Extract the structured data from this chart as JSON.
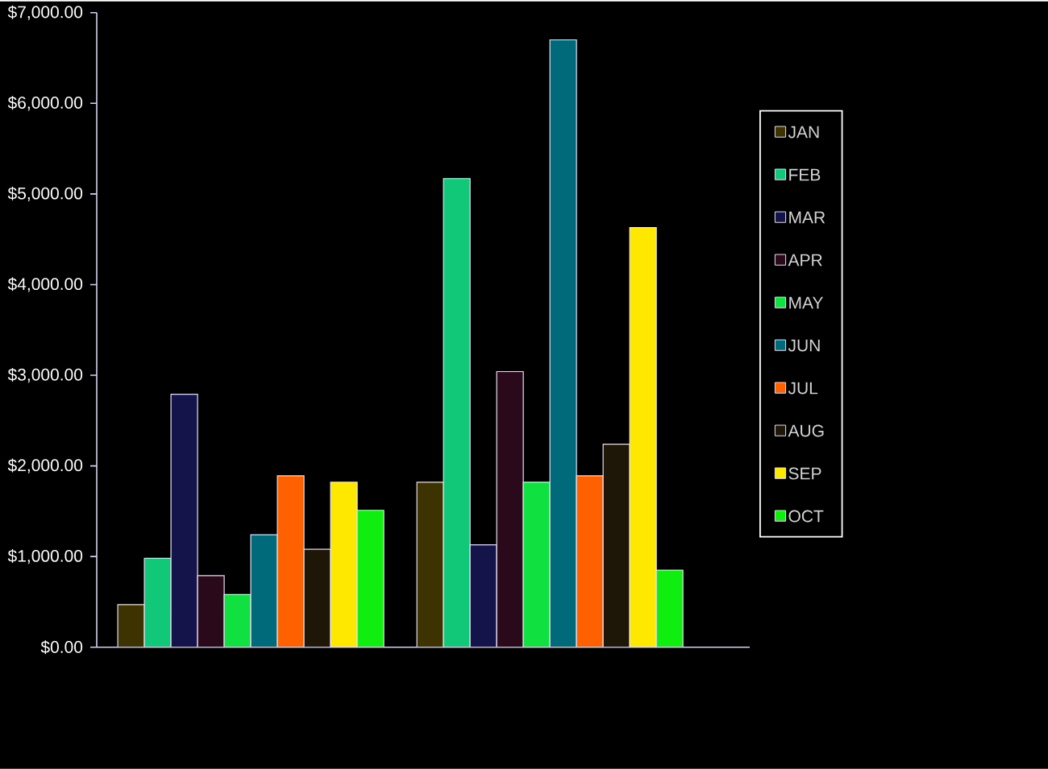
{
  "chart_data": {
    "type": "bar",
    "categories": [
      null,
      null
    ],
    "series": [
      {
        "name": "JAN",
        "color": "#3d3300",
        "values": [
          470,
          1820
        ]
      },
      {
        "name": "FEB",
        "color": "#10c878",
        "values": [
          980,
          5170
        ]
      },
      {
        "name": "MAR",
        "color": "#14144a",
        "values": [
          2790,
          1130
        ]
      },
      {
        "name": "APR",
        "color": "#2a0a1a",
        "values": [
          790,
          3040
        ]
      },
      {
        "name": "MAY",
        "color": "#10e040",
        "values": [
          580,
          1820
        ]
      },
      {
        "name": "JUN",
        "color": "#006a7a",
        "values": [
          1240,
          6700
        ]
      },
      {
        "name": "JUL",
        "color": "#ff6000",
        "values": [
          1890,
          1890
        ]
      },
      {
        "name": "AUG",
        "color": "#1e1606",
        "values": [
          1080,
          2240
        ]
      },
      {
        "name": "SEP",
        "color": "#ffe800",
        "values": [
          1820,
          4630
        ]
      },
      {
        "name": "OCT",
        "color": "#10ee10",
        "values": [
          1510,
          850
        ]
      }
    ],
    "ylim": [
      0,
      7000
    ],
    "yticks": [
      {
        "value": 0,
        "label": "$0.00"
      },
      {
        "value": 1000,
        "label": "$1,000.00"
      },
      {
        "value": 2000,
        "label": "$2,000.00"
      },
      {
        "value": 3000,
        "label": "$3,000.00"
      },
      {
        "value": 4000,
        "label": "$4,000.00"
      },
      {
        "value": 5000,
        "label": "$5,000.00"
      },
      {
        "value": 6000,
        "label": "$6,000.00"
      },
      {
        "value": 7000,
        "label": "$7,000.00"
      }
    ],
    "legend": "right",
    "tick_labels": "y"
  }
}
